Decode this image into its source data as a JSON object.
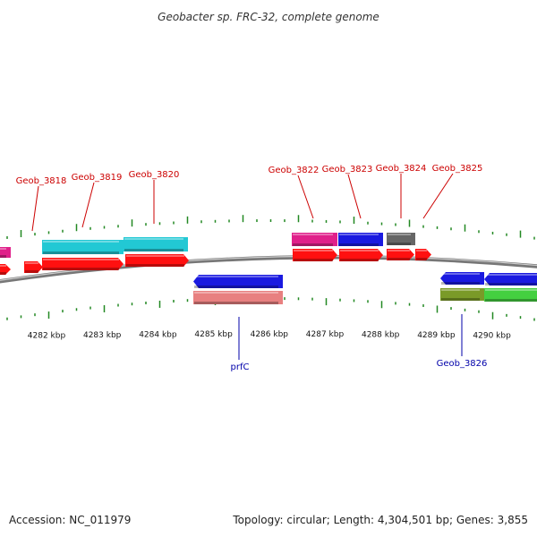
{
  "title": "Geobacter sp. FRC-32, complete genome",
  "footer": {
    "accession": "Accession: NC_011979",
    "summary": "Topology: circular; Length: 4,304,501 bp; Genes: 3,855"
  },
  "colors": {
    "red": "#ff1010",
    "cyan": "#22c8d4",
    "magenta": "#e0208a",
    "blue": "#1a1ae0",
    "gray": "#666666",
    "salmon": "#e88080",
    "olive": "#7a9a28",
    "green": "#44d040",
    "label_red": "#cc0000",
    "label_blue": "#0000aa",
    "tick": "#228822"
  },
  "scale_labels": [
    {
      "label": "4282 kbp",
      "kbp": 4282
    },
    {
      "label": "4283 kbp",
      "kbp": 4283
    },
    {
      "label": "4284 kbp",
      "kbp": 4284
    },
    {
      "label": "4285 kbp",
      "kbp": 4285
    },
    {
      "label": "4286 kbp",
      "kbp": 4286
    },
    {
      "label": "4287 kbp",
      "kbp": 4287
    },
    {
      "label": "4288 kbp",
      "kbp": 4288
    },
    {
      "label": "4289 kbp",
      "kbp": 4289
    },
    {
      "label": "4290 kbp",
      "kbp": 4290
    }
  ],
  "gene_labels": [
    {
      "text": "Geob_3818",
      "color": "label_red"
    },
    {
      "text": "Geob_3819",
      "color": "label_red"
    },
    {
      "text": "Geob_3820",
      "color": "label_red"
    },
    {
      "text": "Geob_3822",
      "color": "label_red"
    },
    {
      "text": "Geob_3823",
      "color": "label_red"
    },
    {
      "text": "Geob_3824",
      "color": "label_red"
    },
    {
      "text": "Geob_3825",
      "color": "label_red"
    },
    {
      "text": "prfC",
      "color": "label_blue"
    },
    {
      "text": "Geob_3826",
      "color": "label_blue"
    }
  ]
}
